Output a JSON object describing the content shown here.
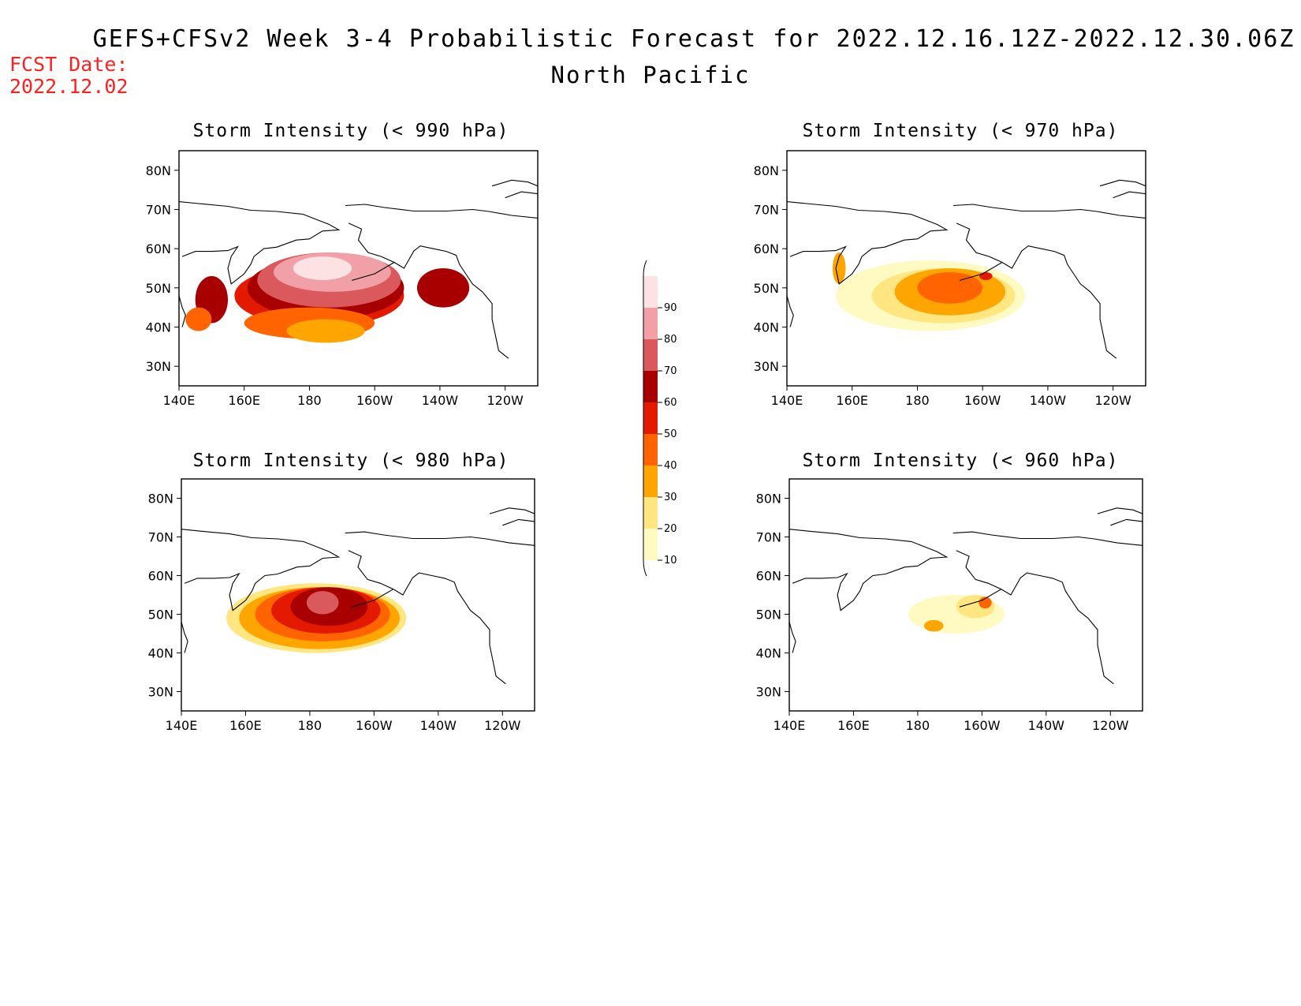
{
  "header": {
    "title": "GEFS+CFSv2 Week 3-4 Probabilistic Forecast for 2022.12.16.12Z-2022.12.30.06Z",
    "region": "North Pacific",
    "fcst_label": "FCST Date:",
    "fcst_date": "2022.12.02"
  },
  "axes": {
    "lon_ticks": [
      "140E",
      "160E",
      "180",
      "160W",
      "140W",
      "120W"
    ],
    "lat_ticks": [
      "30N",
      "40N",
      "50N",
      "60N",
      "70N",
      "80N"
    ]
  },
  "colorbar": {
    "levels": [
      "10",
      "20",
      "30",
      "40",
      "50",
      "60",
      "70",
      "80",
      "90"
    ],
    "colors": [
      "#fff9c2",
      "#ffe680",
      "#ffa500",
      "#ff6400",
      "#e41a00",
      "#a80000",
      "#d9595c",
      "#f0a0a6",
      "#fde2e4"
    ]
  },
  "chart_data": [
    {
      "type": "heatmap",
      "title": "Storm Intensity (< 990 hPa)",
      "blobs": [
        {
          "lon": 183,
          "lat": 48,
          "rx": 26,
          "ry": 8,
          "level": 50
        },
        {
          "lon": 185,
          "lat": 50,
          "rx": 24,
          "ry": 8,
          "level": 60
        },
        {
          "lon": 186,
          "lat": 52,
          "rx": 22,
          "ry": 7,
          "level": 70
        },
        {
          "lon": 187,
          "lat": 54,
          "rx": 18,
          "ry": 5,
          "level": 80
        },
        {
          "lon": 184,
          "lat": 55,
          "rx": 9,
          "ry": 3,
          "level": 90
        },
        {
          "lon": 180,
          "lat": 41,
          "rx": 20,
          "ry": 4,
          "level": 40
        },
        {
          "lon": 185,
          "lat": 39,
          "rx": 12,
          "ry": 3,
          "level": 30
        },
        {
          "lon": 150,
          "lat": 47,
          "rx": 5,
          "ry": 6,
          "level": 60
        },
        {
          "lon": 146,
          "lat": 42,
          "rx": 4,
          "ry": 3,
          "level": 40
        },
        {
          "lon": 221,
          "lat": 50,
          "rx": 8,
          "ry": 5,
          "level": 60
        }
      ]
    },
    {
      "type": "heatmap",
      "title": "Storm Intensity (< 970 hPa)",
      "blobs": [
        {
          "lon": 184,
          "lat": 48,
          "rx": 29,
          "ry": 9,
          "level": 10
        },
        {
          "lon": 188,
          "lat": 48,
          "rx": 22,
          "ry": 7,
          "level": 20
        },
        {
          "lon": 190,
          "lat": 49,
          "rx": 17,
          "ry": 6,
          "level": 30
        },
        {
          "lon": 190,
          "lat": 50,
          "rx": 10,
          "ry": 4,
          "level": 40
        },
        {
          "lon": 201,
          "lat": 53,
          "rx": 2,
          "ry": 1,
          "level": 50
        },
        {
          "lon": 156,
          "lat": 55,
          "rx": 2,
          "ry": 4,
          "level": 30
        }
      ]
    },
    {
      "type": "heatmap",
      "title": "Storm Intensity (< 980 hPa)",
      "blobs": [
        {
          "lon": 182,
          "lat": 49,
          "rx": 28,
          "ry": 9,
          "level": 20
        },
        {
          "lon": 183,
          "lat": 49,
          "rx": 25,
          "ry": 8,
          "level": 30
        },
        {
          "lon": 184,
          "lat": 50,
          "rx": 21,
          "ry": 7,
          "level": 40
        },
        {
          "lon": 185,
          "lat": 51,
          "rx": 17,
          "ry": 6,
          "level": 50
        },
        {
          "lon": 186,
          "lat": 52,
          "rx": 12,
          "ry": 5,
          "level": 60
        },
        {
          "lon": 184,
          "lat": 53,
          "rx": 5,
          "ry": 3,
          "level": 70
        }
      ]
    },
    {
      "type": "heatmap",
      "title": "Storm Intensity (< 960 hPa)",
      "blobs": [
        {
          "lon": 192,
          "lat": 50,
          "rx": 15,
          "ry": 5,
          "level": 10
        },
        {
          "lon": 198,
          "lat": 52,
          "rx": 6,
          "ry": 3,
          "level": 20
        },
        {
          "lon": 201,
          "lat": 53,
          "rx": 2,
          "ry": 1.5,
          "level": 40
        },
        {
          "lon": 185,
          "lat": 47,
          "rx": 3,
          "ry": 1.5,
          "level": 30
        }
      ]
    }
  ]
}
